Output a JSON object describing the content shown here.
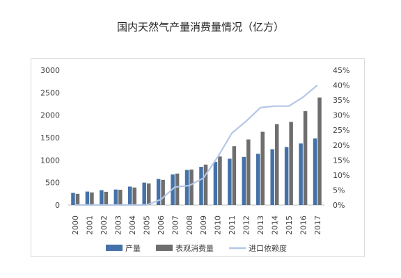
{
  "page": {
    "title": "国内天然气产量消费量情况（亿方）"
  },
  "chart_data": {
    "type": "bar",
    "title": "国内天然气产量消费量情况（亿方）",
    "categories": [
      "2000",
      "2001",
      "2002",
      "2003",
      "2004",
      "2005",
      "2006",
      "2007",
      "2008",
      "2009",
      "2010",
      "2011",
      "2012",
      "2013",
      "2014",
      "2015",
      "2016",
      "2017"
    ],
    "series": [
      {
        "name": "产量",
        "kind": "bar",
        "axis": "left",
        "color": "#4472a8",
        "values": [
          270,
          300,
          330,
          345,
          410,
          500,
          580,
          680,
          780,
          850,
          960,
          1030,
          1070,
          1140,
          1240,
          1290,
          1370,
          1480
        ]
      },
      {
        "name": "表观消费量",
        "kind": "bar",
        "axis": "left",
        "color": "#6e6e6e",
        "values": [
          250,
          280,
          295,
          340,
          390,
          480,
          560,
          700,
          790,
          900,
          1080,
          1310,
          1460,
          1630,
          1800,
          1850,
          2090,
          2390
        ]
      },
      {
        "name": "进口依赖度",
        "kind": "line",
        "axis": "right",
        "color": "#b4c6e7",
        "values": [
          0,
          0,
          0,
          0,
          0,
          0,
          1.8,
          6,
          6.5,
          9,
          16,
          24,
          28,
          32.5,
          33,
          33,
          36,
          40
        ]
      }
    ],
    "y_left": {
      "ylim": [
        0,
        3000
      ],
      "ticks": [
        "0",
        "500",
        "1000",
        "1500",
        "2000",
        "2500",
        "3000"
      ],
      "tick_values": [
        0,
        500,
        1000,
        1500,
        2000,
        2500,
        3000
      ]
    },
    "y_right": {
      "ylim": [
        0,
        45
      ],
      "ticks": [
        "0%",
        "5%",
        "10%",
        "15%",
        "20%",
        "25%",
        "30%",
        "35%",
        "40%",
        "45%"
      ],
      "tick_values": [
        0,
        5,
        10,
        15,
        20,
        25,
        30,
        35,
        40,
        45
      ]
    },
    "grid": false,
    "legend_position": "bottom"
  }
}
